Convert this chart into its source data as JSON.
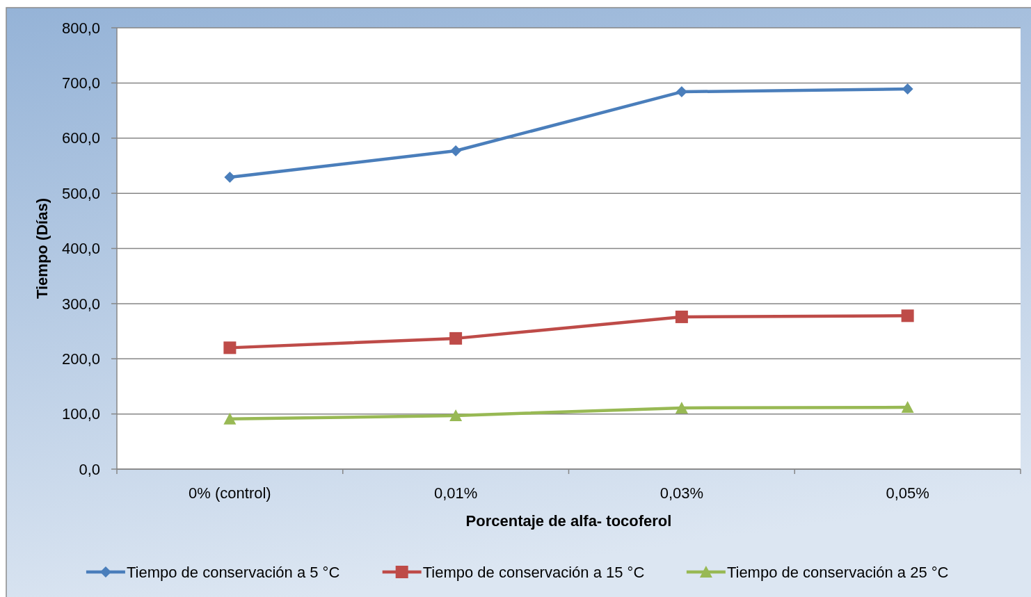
{
  "chart_data": {
    "type": "line",
    "xlabel": "Porcentaje de alfa- tocoferol",
    "ylabel": "Tiempo (Días)",
    "categories": [
      "0% (control)",
      "0,01%",
      "0,03%",
      "0,05%"
    ],
    "series": [
      {
        "name": "Tiempo de conservación a 5 °C",
        "color": "#4a7ebb",
        "marker": "diamond",
        "values": [
          529,
          577,
          684,
          689
        ]
      },
      {
        "name": "Tiempo de conservación a 15 °C",
        "color": "#be4b48",
        "marker": "square",
        "values": [
          220,
          237,
          276,
          278
        ]
      },
      {
        "name": "Tiempo de conservación a 25 °C",
        "color": "#98b954",
        "marker": "triangle",
        "values": [
          91,
          97,
          111,
          112
        ]
      }
    ],
    "ylim": [
      0,
      800
    ],
    "yticks": [
      {
        "value": 0,
        "label": "0,0"
      },
      {
        "value": 100,
        "label": "100,0"
      },
      {
        "value": 200,
        "label": "200,0"
      },
      {
        "value": 300,
        "label": "300,0"
      },
      {
        "value": 400,
        "label": "400,0"
      },
      {
        "value": 500,
        "label": "500,0"
      },
      {
        "value": 600,
        "label": "600,0"
      },
      {
        "value": 700,
        "label": "700,0"
      },
      {
        "value": 800,
        "label": "800,0"
      }
    ],
    "grid": "y",
    "legend": "bottom",
    "line_style": "solid"
  }
}
